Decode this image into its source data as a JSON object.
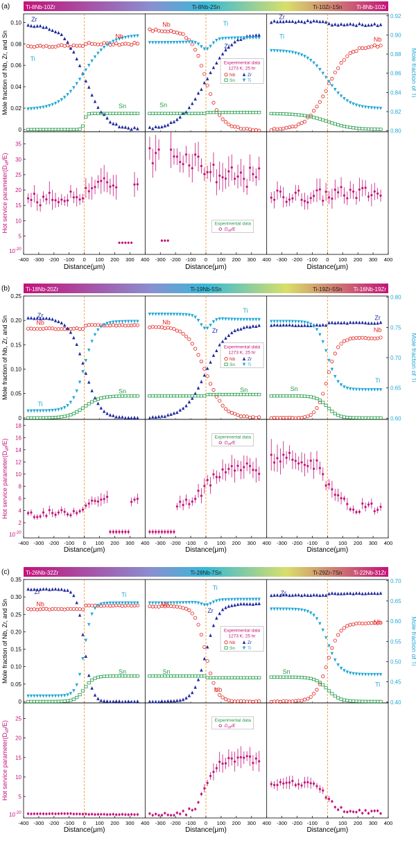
{
  "colors": {
    "Nb": "#e0201b",
    "Zr": "#1f2a9e",
    "Sn": "#1f9a45",
    "Ti": "#22a7d6",
    "hot": "#c4127a",
    "guide": "#f08a1c",
    "bar_start": "#c4127a",
    "bar_mid": "#35b9d8",
    "bar_mid2": "#d8df6a",
    "bar_end": "#c4127a"
  },
  "panels": [
    {
      "id": "a",
      "label": "(a)",
      "couples": [
        "Ti-8Nb-10Zr",
        "Ti-8Nb-2Sn",
        "Ti-10Zr-1Sn",
        "Ti-8Nb-10Zr"
      ],
      "top": {
        "ylabel": "Mole fraction of Nb, Zr, and Sn",
        "yticks": [
          "0",
          "0.02",
          "0.04",
          "0.06",
          "0.08",
          "0.10"
        ],
        "ylim": [
          -0.002,
          0.108
        ],
        "ylabel2": "Mole fraction of Ti",
        "y2ticks": [
          "0.80",
          "0.82",
          "0.84",
          "0.86",
          "0.88",
          "0.90",
          "0.92"
        ],
        "y2lim": [
          0.799,
          0.922
        ],
        "legend": {
          "title": "Experimental data",
          "cond": "1273 K, 25 hr",
          "row1": "Nb",
          "row1b": "Zr",
          "row2": "Sn",
          "row2b": "Ti"
        },
        "labels": [
          {
            "t": "Zr",
            "c": "Zr",
            "seg": 0,
            "x": -330,
            "y": 0.101
          },
          {
            "t": "Nb",
            "c": "Nb",
            "seg": 0,
            "x": 230,
            "y": 0.085
          },
          {
            "t": "Ti",
            "c": "Ti",
            "seg": 0,
            "x": -340,
            "y": 0.064,
            "axis": 2
          },
          {
            "t": "Sn",
            "c": "Sn",
            "seg": 0,
            "x": 250,
            "y": 0.02
          },
          {
            "t": "Nb",
            "c": "Nb",
            "seg": 1,
            "x": -260,
            "y": 0.096
          },
          {
            "t": "Ti",
            "c": "Ti",
            "seg": 1,
            "x": 130,
            "y": 0.097
          },
          {
            "t": "Zr",
            "c": "Zr",
            "seg": 1,
            "x": 140,
            "y": 0.076
          },
          {
            "t": "Sn",
            "c": "Sn",
            "seg": 1,
            "x": -280,
            "y": 0.021
          },
          {
            "t": "Zr",
            "c": "Zr",
            "seg": 2,
            "x": -300,
            "y": 0.103
          },
          {
            "t": "Ti",
            "c": "Ti",
            "seg": 2,
            "x": -300,
            "y": 0.085
          },
          {
            "t": "Nb",
            "c": "Nb",
            "seg": 2,
            "x": 330,
            "y": 0.082
          }
        ]
      },
      "bottom": {
        "ylabel": "Hot service parameter(D",
        "ylabel_sub": "eff",
        "ylabel_end": "/E",
        "yticks": [
          "5",
          "10",
          "15",
          "20",
          "25",
          "30",
          "35"
        ],
        "ytick_bottom": "10",
        "ytick_bottom_exp": "-20",
        "ylim": [
          -1,
          39
        ],
        "legend": {
          "title": "Experimental data",
          "entry": "D",
          "entry_sub": "eff",
          "entry_end": "/E"
        }
      },
      "xlabel": "Distance(μm)",
      "xticks": [
        "-400",
        "-300",
        "-200",
        "-100",
        "0",
        "100",
        "200",
        "300",
        "400"
      ]
    },
    {
      "id": "b",
      "label": "(b)",
      "couples": [
        "Ti-18Nb-20Zr",
        "Ti-19Nb-5Sn",
        "Ti-19Zr-5Sn",
        "Ti-16Nb-19Zr"
      ],
      "top": {
        "ylabel": "Mole fraction of Nb, Zr, and Sn",
        "yticks": [
          "0",
          "0.05",
          "0.10",
          "0.15",
          "0.20",
          "0.25"
        ],
        "ylim": [
          -0.003,
          0.25
        ],
        "ylabel2": "Mole fraction of Ti",
        "y2ticks": [
          "0.60",
          "0.65",
          "0.70",
          "0.75",
          "0.80"
        ],
        "y2lim": [
          0.598,
          0.802
        ],
        "legend": {
          "title": "Experimental data",
          "cond": "1273 K, 25 hr",
          "row1": "Nb",
          "row1b": "Zr",
          "row2": "Sn",
          "row2b": "Ti"
        },
        "labels": [
          {
            "t": "Zr",
            "c": "Zr",
            "seg": 0,
            "x": -290,
            "y": 0.206
          },
          {
            "t": "Nb",
            "c": "Nb",
            "seg": 0,
            "x": -290,
            "y": 0.191
          },
          {
            "t": "Ti",
            "c": "Ti",
            "seg": 0,
            "x": -290,
            "y": 0.024
          },
          {
            "t": "Sn",
            "c": "Sn",
            "seg": 0,
            "x": 250,
            "y": 0.05
          },
          {
            "t": "Nb",
            "c": "Nb",
            "seg": 1,
            "x": -260,
            "y": 0.192
          },
          {
            "t": "Ti",
            "c": "Ti",
            "seg": 1,
            "x": 260,
            "y": 0.216
          },
          {
            "t": "Zr",
            "c": "Zr",
            "seg": 1,
            "x": 60,
            "y": 0.175
          },
          {
            "t": "Sn",
            "c": "Sn",
            "seg": 1,
            "x": 250,
            "y": 0.053
          },
          {
            "t": "Zr",
            "c": "Zr",
            "seg": 2,
            "x": 330,
            "y": 0.201
          },
          {
            "t": "Nb",
            "c": "Nb",
            "seg": 2,
            "x": 330,
            "y": 0.176
          },
          {
            "t": "Ti",
            "c": "Ti",
            "seg": 2,
            "x": 330,
            "y": 0.072
          },
          {
            "t": "Sn",
            "c": "Sn",
            "seg": 2,
            "x": -220,
            "y": 0.055
          }
        ]
      },
      "bottom": {
        "ylabel": "Hot service parameter(D",
        "ylabel_sub": "eff",
        "ylabel_end": "/E",
        "yticks": [
          "2",
          "4",
          "6",
          "8",
          "10",
          "12",
          "14",
          "16",
          "18"
        ],
        "ytick_bottom": "10",
        "ytick_bottom_exp": "-20",
        "ylim": [
          -0.5,
          19
        ],
        "legend": {
          "title": "Experimental data",
          "entry": "D",
          "entry_sub": "eff",
          "entry_end": "/E"
        }
      },
      "xlabel": "Distance(μm)",
      "xticks": [
        "-400",
        "-300",
        "-200",
        "-100",
        "0",
        "100",
        "200",
        "300",
        "400"
      ]
    },
    {
      "id": "c",
      "label": "(c)",
      "couples": [
        "Ti-26Nb-32Zr",
        "Ti-28Nb-7Sn",
        "Ti-29Zr-7Sn",
        "Ti-22Nb-31Zr"
      ],
      "top": {
        "ylabel": "Mole fraction of Nb, Zr, and Sn",
        "yticks": [
          "0",
          "0.05",
          "0.10",
          "0.15",
          "0.20",
          "0.25",
          "0.30",
          "0.35"
        ],
        "ylim": [
          -0.004,
          0.35
        ],
        "ylabel2": "Mole fraction of Ti",
        "y2ticks": [
          "0.40",
          "0.45",
          "0.50",
          "0.55",
          "0.60",
          "0.65",
          "0.70"
        ],
        "y2lim": [
          0.398,
          0.703
        ],
        "legend": {
          "title": "Experimental data",
          "cond": "1273 K, 25 hr",
          "row1": "Nb",
          "row1b": "Zr",
          "row2": "Sn",
          "row2b": "Ti"
        },
        "labels": [
          {
            "t": "Zr",
            "c": "Zr",
            "seg": 0,
            "x": -310,
            "y": 0.308
          },
          {
            "t": "Nb",
            "c": "Nb",
            "seg": 0,
            "x": -290,
            "y": 0.273
          },
          {
            "t": "Ti",
            "c": "Ti",
            "seg": 0,
            "x": 260,
            "y": 0.3
          },
          {
            "t": "Sn",
            "c": "Sn",
            "seg": 0,
            "x": 250,
            "y": 0.08
          },
          {
            "t": "Nb",
            "c": "Nb",
            "seg": 1,
            "x": -270,
            "y": 0.272
          },
          {
            "t": "Ti",
            "c": "Ti",
            "seg": 1,
            "x": 60,
            "y": 0.32
          },
          {
            "t": "Zr",
            "c": "Zr",
            "seg": 1,
            "x": 30,
            "y": 0.255
          },
          {
            "t": "Sn",
            "c": "Sn",
            "seg": 1,
            "x": -260,
            "y": 0.08
          },
          {
            "t": "Nb",
            "c": "Nb",
            "seg": 1,
            "x": 80,
            "y": 0.028
          },
          {
            "t": "Zr",
            "c": "Zr",
            "seg": 2,
            "x": -290,
            "y": 0.305
          },
          {
            "t": "Nb",
            "c": "Nb",
            "seg": 2,
            "x": 330,
            "y": 0.222
          },
          {
            "t": "Sn",
            "c": "Sn",
            "seg": 2,
            "x": -270,
            "y": 0.08
          },
          {
            "t": "Ti",
            "c": "Ti",
            "seg": 2,
            "x": 330,
            "y": 0.043
          }
        ]
      },
      "bottom": {
        "ylabel": "Hot service parameter(D",
        "ylabel_sub": "eff",
        "ylabel_end": "/E",
        "yticks": [
          "5",
          "10",
          "15",
          "20",
          "25"
        ],
        "ytick_bottom": "10",
        "ytick_bottom_exp": "-20",
        "ylim": [
          -0.5,
          29
        ],
        "legend": {
          "title": "Experimental data",
          "entry": "D",
          "entry_sub": "eff",
          "entry_end": "/E"
        }
      },
      "xlabel": "Distance(μm)",
      "xticks": [
        "-400",
        "-300",
        "-200",
        "-100",
        "0",
        "100",
        "200",
        "300",
        "400"
      ]
    }
  ],
  "chart_data": [
    {
      "type": "scatter",
      "panel": "a",
      "x_range": [
        -400,
        400
      ],
      "segments": [
        {
          "couple": "Ti-8Nb-10Zr / Ti-8Nb-2Sn",
          "Nb": {
            "left": 0.078,
            "right": 0.08,
            "mid": 0.082,
            "w": 0
          },
          "Zr": {
            "left": 0.098,
            "right": 0.0,
            "w": 70
          },
          "Sn": {
            "left": 0.0,
            "right": 0.015,
            "w": 8
          },
          "Ti": {
            "left": 0.822,
            "right": 0.9,
            "w": 80
          },
          "hot": {
            "left": 17,
            "right": 22,
            "low_range": [
              230,
              320
            ],
            "low": 2.8
          }
        },
        {
          "couple": "Ti-8Nb-2Sn / Ti-10Zr-1Sn",
          "Nb": {
            "left": 0.093,
            "right": 0.0,
            "w": 50
          },
          "Zr": {
            "left": 0.0,
            "right": 0.091,
            "w": 90
          },
          "Sn": {
            "left": 0.015,
            "right": 0.016,
            "w": 0
          },
          "Ti": {
            "left": 0.892,
            "right": 0.897,
            "dip": 0.885
          },
          "hot": {
            "left": 31,
            "right": 24,
            "low_range": [
              -290,
              -250
            ],
            "low": 3.5
          }
        },
        {
          "couple": "Ti-10Zr-1Sn / Ti-8Nb-10Zr",
          "Nb": {
            "left": 0.0,
            "right": 0.079,
            "w": 70
          },
          "Zr": {
            "left": 0.101,
            "right": 0.098,
            "w": 0
          },
          "Sn": {
            "left": 0.015,
            "right": 0.0,
            "w": 80
          },
          "Ti": {
            "left": 0.884,
            "right": 0.823,
            "w": 70
          },
          "hot": {
            "left": 18,
            "right": 19
          }
        }
      ]
    },
    {
      "type": "scatter",
      "panel": "b",
      "x_range": [
        -400,
        400
      ],
      "segments": [
        {
          "couple": "Ti-18Nb-20Zr / Ti-19Nb-5Sn",
          "Nb": {
            "left": 0.183,
            "right": 0.19,
            "w": 0
          },
          "Zr": {
            "left": 0.205,
            "right": 0.0,
            "w": 50
          },
          "Sn": {
            "left": 0.0,
            "right": 0.045,
            "w": 50
          },
          "Ti": {
            "left": 0.612,
            "right": 0.76,
            "w": 40
          },
          "hot": {
            "left": 3.5,
            "right": 6,
            "low_range": [
              170,
              290
            ],
            "low": 0.5
          }
        },
        {
          "couple": "Ti-19Nb-5Sn / Ti-19Zr-5Sn",
          "Nb": {
            "left": 0.187,
            "right": 0.0,
            "w": 60
          },
          "Zr": {
            "left": 0.0,
            "right": 0.19,
            "w": 70
          },
          "Sn": {
            "left": 0.045,
            "right": 0.048,
            "w": 0
          },
          "Ti": {
            "left": 0.772,
            "right": 0.763,
            "dip": 0.748
          },
          "hot": {
            "left": 5,
            "right": 11,
            "low_range": [
              -380,
              -200
            ],
            "low": 0.5
          }
        },
        {
          "couple": "Ti-19Zr-5Sn / Ti-16Nb-19Zr",
          "Nb": {
            "left": 0.0,
            "right": 0.164,
            "w": 35
          },
          "Zr": {
            "left": 0.19,
            "right": 0.195,
            "w": 0
          },
          "Sn": {
            "left": 0.045,
            "right": 0.0,
            "w": 35
          },
          "Ti": {
            "left": 0.76,
            "right": 0.647,
            "w": 35
          },
          "hot": {
            "left": 12.5,
            "right": 4.5
          }
        }
      ]
    },
    {
      "type": "scatter",
      "panel": "c",
      "x_range": [
        -400,
        400
      ],
      "segments": [
        {
          "couple": "Ti-26Nb-32Zr / Ti-28Nb-7Sn",
          "Nb": {
            "left": 0.265,
            "right": 0.275,
            "w": 0
          },
          "Zr": {
            "left": 0.322,
            "right": 0.0,
            "w": 25
          },
          "Sn": {
            "left": 0.0,
            "right": 0.073,
            "w": 30
          },
          "Ti": {
            "left": 0.415,
            "right": 0.645,
            "w": 25
          },
          "hot": {
            "left": 0.6,
            "right": 0.4
          }
        },
        {
          "couple": "Ti-28Nb-7Sn / Ti-29Zr-7Sn",
          "Nb": {
            "left": 0.273,
            "right": 0.0,
            "w": 35
          },
          "Zr": {
            "left": 0.0,
            "right": 0.28,
            "w": 40
          },
          "Sn": {
            "left": 0.073,
            "right": 0.068,
            "w": 0
          },
          "Ti": {
            "left": 0.645,
            "right": 0.654,
            "dip": 0.64
          },
          "hot": {
            "left": 0.3,
            "right": 14.5
          }
        },
        {
          "couple": "Ti-29Zr-7Sn / Ti-22Nb-31Zr",
          "Nb": {
            "left": 0.0,
            "right": 0.225,
            "w": 40
          },
          "Zr": {
            "left": 0.305,
            "right": 0.31,
            "w": 0
          },
          "Sn": {
            "left": 0.07,
            "right": 0.0,
            "w": 40
          },
          "Ti": {
            "left": 0.63,
            "right": 0.468,
            "w": 40
          },
          "hot": {
            "left": 8.5,
            "right": 1.0
          }
        }
      ]
    }
  ]
}
